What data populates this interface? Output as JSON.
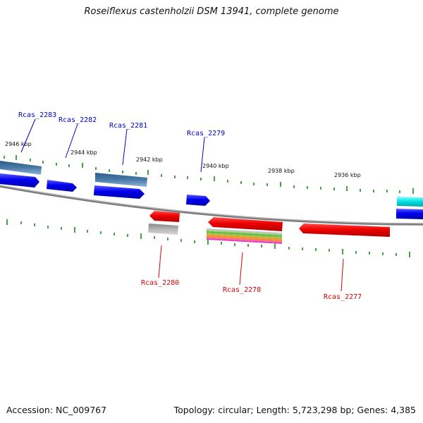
{
  "title": "Roseiflexus castenholzii DSM 13941, complete genome",
  "footer": {
    "accession": "Accession: NC_009767",
    "summary": "Topology: circular; Length: 5,723,298 bp; Genes: 4,385"
  },
  "scale_labels": [
    "2946 kbp",
    "2944 kbp",
    "2942 kbp",
    "2940 kbp",
    "2938 kbp",
    "2936 kbp"
  ],
  "gene_labels": {
    "forward": [
      "Rcas_2283",
      "Rcas_2282",
      "Rcas_2281",
      "Rcas_2279"
    ],
    "reverse": [
      "Rcas_2280",
      "Rcas_2278",
      "Rcas_2277"
    ]
  },
  "colors": {
    "forward_label": "#0000cc",
    "reverse_label": "#dd0000",
    "forward_gene": "#0000ee",
    "reverse_gene": "#ee0000",
    "steel_feature": "#4a7aa8",
    "gray_feature": "#aaaaaa",
    "cyan_feature": "#00e0e0",
    "backbone": "#808080",
    "tick": "#1a8a1a"
  }
}
